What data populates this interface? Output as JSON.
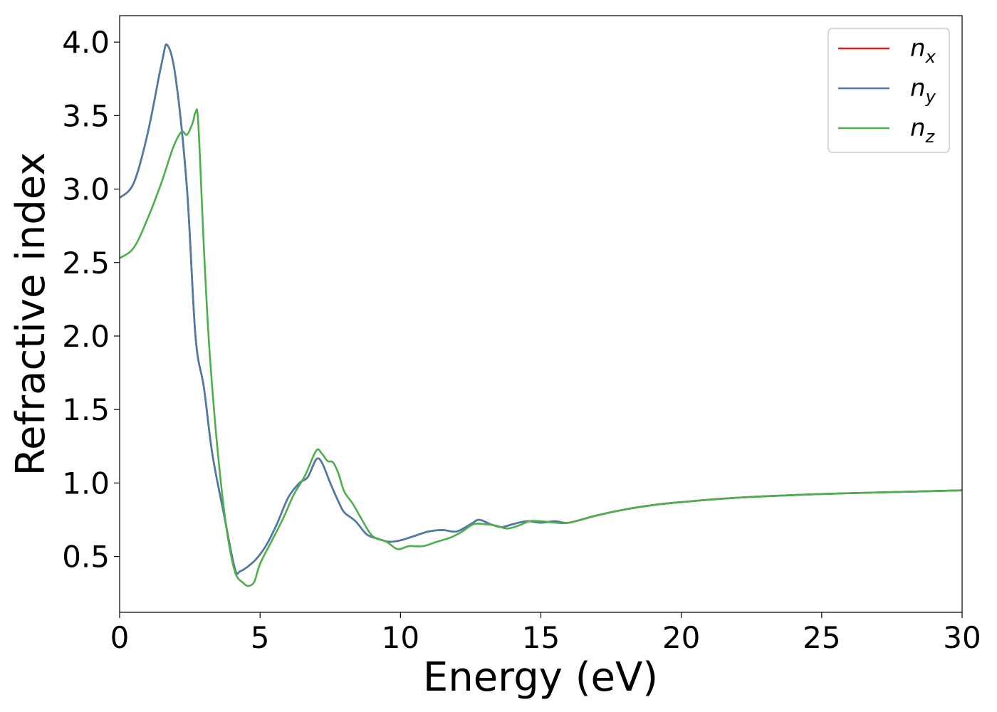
{
  "chart_data": {
    "type": "line",
    "title": "",
    "xlabel": "Energy (eV)",
    "ylabel": "Refractive index",
    "xlim": [
      0,
      30
    ],
    "ylim": [
      0.12,
      4.18
    ],
    "xticks": [
      0,
      5,
      10,
      15,
      20,
      25,
      30
    ],
    "yticks": [
      0.5,
      1.0,
      1.5,
      2.0,
      2.5,
      3.0,
      3.5,
      4.0
    ],
    "xtick_labels": [
      "0",
      "5",
      "10",
      "15",
      "20",
      "25",
      "30"
    ],
    "ytick_labels": [
      "0.5",
      "1.0",
      "1.5",
      "2.0",
      "2.5",
      "3.0",
      "3.5",
      "4.0"
    ],
    "grid": false,
    "legend_position": "top-right",
    "series": [
      {
        "name": "n",
        "subscript": "x",
        "color": "#e41a1c",
        "points": [
          [
            0,
            2.94
          ],
          [
            0.5,
            3.04
          ],
          [
            1.0,
            3.38
          ],
          [
            1.5,
            3.86
          ],
          [
            1.7,
            3.98
          ],
          [
            2.0,
            3.75
          ],
          [
            2.4,
            3.0
          ],
          [
            2.7,
            2.0
          ],
          [
            3.0,
            1.65
          ],
          [
            3.3,
            1.2
          ],
          [
            3.7,
            0.8
          ],
          [
            4.1,
            0.42
          ],
          [
            4.3,
            0.4
          ],
          [
            4.8,
            0.47
          ],
          [
            5.2,
            0.57
          ],
          [
            5.6,
            0.72
          ],
          [
            6.0,
            0.9
          ],
          [
            6.4,
            1.0
          ],
          [
            6.7,
            1.04
          ],
          [
            7.0,
            1.16
          ],
          [
            7.2,
            1.14
          ],
          [
            7.5,
            1.0
          ],
          [
            7.8,
            0.87
          ],
          [
            8.0,
            0.8
          ],
          [
            8.4,
            0.74
          ],
          [
            8.8,
            0.65
          ],
          [
            9.2,
            0.62
          ],
          [
            9.6,
            0.6
          ],
          [
            10.0,
            0.61
          ],
          [
            10.5,
            0.64
          ],
          [
            11.0,
            0.67
          ],
          [
            11.5,
            0.68
          ],
          [
            12.0,
            0.67
          ],
          [
            12.5,
            0.72
          ],
          [
            12.8,
            0.75
          ],
          [
            13.2,
            0.72
          ],
          [
            13.6,
            0.7
          ],
          [
            14.0,
            0.72
          ],
          [
            14.5,
            0.74
          ],
          [
            15.0,
            0.73
          ],
          [
            15.5,
            0.74
          ],
          [
            16.0,
            0.73
          ],
          [
            17.0,
            0.78
          ],
          [
            18.0,
            0.82
          ],
          [
            19.0,
            0.85
          ],
          [
            20.0,
            0.87
          ],
          [
            22.0,
            0.9
          ],
          [
            25.0,
            0.925
          ],
          [
            28.0,
            0.94
          ],
          [
            30.0,
            0.95
          ]
        ]
      },
      {
        "name": "n",
        "subscript": "y",
        "color": "#4a7cab",
        "points": [
          [
            0,
            2.94
          ],
          [
            0.5,
            3.04
          ],
          [
            1.0,
            3.38
          ],
          [
            1.5,
            3.86
          ],
          [
            1.7,
            3.98
          ],
          [
            2.0,
            3.75
          ],
          [
            2.4,
            3.0
          ],
          [
            2.7,
            2.0
          ],
          [
            3.0,
            1.65
          ],
          [
            3.3,
            1.2
          ],
          [
            3.7,
            0.8
          ],
          [
            4.1,
            0.42
          ],
          [
            4.3,
            0.4
          ],
          [
            4.8,
            0.47
          ],
          [
            5.2,
            0.57
          ],
          [
            5.6,
            0.72
          ],
          [
            6.0,
            0.9
          ],
          [
            6.4,
            1.0
          ],
          [
            6.7,
            1.04
          ],
          [
            7.0,
            1.16
          ],
          [
            7.2,
            1.14
          ],
          [
            7.5,
            1.0
          ],
          [
            7.8,
            0.87
          ],
          [
            8.0,
            0.8
          ],
          [
            8.4,
            0.74
          ],
          [
            8.8,
            0.65
          ],
          [
            9.2,
            0.62
          ],
          [
            9.6,
            0.6
          ],
          [
            10.0,
            0.61
          ],
          [
            10.5,
            0.64
          ],
          [
            11.0,
            0.67
          ],
          [
            11.5,
            0.68
          ],
          [
            12.0,
            0.67
          ],
          [
            12.5,
            0.72
          ],
          [
            12.8,
            0.75
          ],
          [
            13.2,
            0.72
          ],
          [
            13.6,
            0.7
          ],
          [
            14.0,
            0.72
          ],
          [
            14.5,
            0.74
          ],
          [
            15.0,
            0.73
          ],
          [
            15.5,
            0.74
          ],
          [
            16.0,
            0.73
          ],
          [
            17.0,
            0.78
          ],
          [
            18.0,
            0.82
          ],
          [
            19.0,
            0.85
          ],
          [
            20.0,
            0.87
          ],
          [
            22.0,
            0.9
          ],
          [
            25.0,
            0.925
          ],
          [
            28.0,
            0.94
          ],
          [
            30.0,
            0.95
          ]
        ]
      },
      {
        "name": "n",
        "subscript": "z",
        "color": "#4daf4a",
        "points": [
          [
            0,
            2.53
          ],
          [
            0.5,
            2.6
          ],
          [
            1.0,
            2.8
          ],
          [
            1.5,
            3.05
          ],
          [
            1.9,
            3.28
          ],
          [
            2.2,
            3.39
          ],
          [
            2.4,
            3.37
          ],
          [
            2.6,
            3.45
          ],
          [
            2.7,
            3.52
          ],
          [
            2.8,
            3.45
          ],
          [
            3.0,
            2.6
          ],
          [
            3.2,
            1.9
          ],
          [
            3.5,
            1.2
          ],
          [
            3.8,
            0.7
          ],
          [
            4.1,
            0.4
          ],
          [
            4.4,
            0.32
          ],
          [
            4.6,
            0.3
          ],
          [
            4.8,
            0.33
          ],
          [
            5.0,
            0.45
          ],
          [
            5.4,
            0.6
          ],
          [
            5.8,
            0.75
          ],
          [
            6.2,
            0.92
          ],
          [
            6.6,
            1.05
          ],
          [
            7.0,
            1.22
          ],
          [
            7.2,
            1.2
          ],
          [
            7.4,
            1.15
          ],
          [
            7.6,
            1.14
          ],
          [
            7.8,
            1.06
          ],
          [
            8.0,
            0.94
          ],
          [
            8.3,
            0.86
          ],
          [
            8.6,
            0.76
          ],
          [
            9.0,
            0.64
          ],
          [
            9.5,
            0.6
          ],
          [
            9.9,
            0.55
          ],
          [
            10.3,
            0.57
          ],
          [
            10.8,
            0.57
          ],
          [
            11.3,
            0.6
          ],
          [
            11.8,
            0.63
          ],
          [
            12.2,
            0.67
          ],
          [
            12.6,
            0.72
          ],
          [
            13.0,
            0.72
          ],
          [
            13.4,
            0.71
          ],
          [
            13.8,
            0.69
          ],
          [
            14.2,
            0.71
          ],
          [
            14.6,
            0.74
          ],
          [
            15.0,
            0.74
          ],
          [
            15.5,
            0.73
          ],
          [
            16.0,
            0.73
          ],
          [
            17.0,
            0.78
          ],
          [
            18.0,
            0.82
          ],
          [
            19.0,
            0.85
          ],
          [
            20.0,
            0.87
          ],
          [
            22.0,
            0.9
          ],
          [
            25.0,
            0.925
          ],
          [
            28.0,
            0.94
          ],
          [
            30.0,
            0.95
          ]
        ]
      }
    ]
  }
}
